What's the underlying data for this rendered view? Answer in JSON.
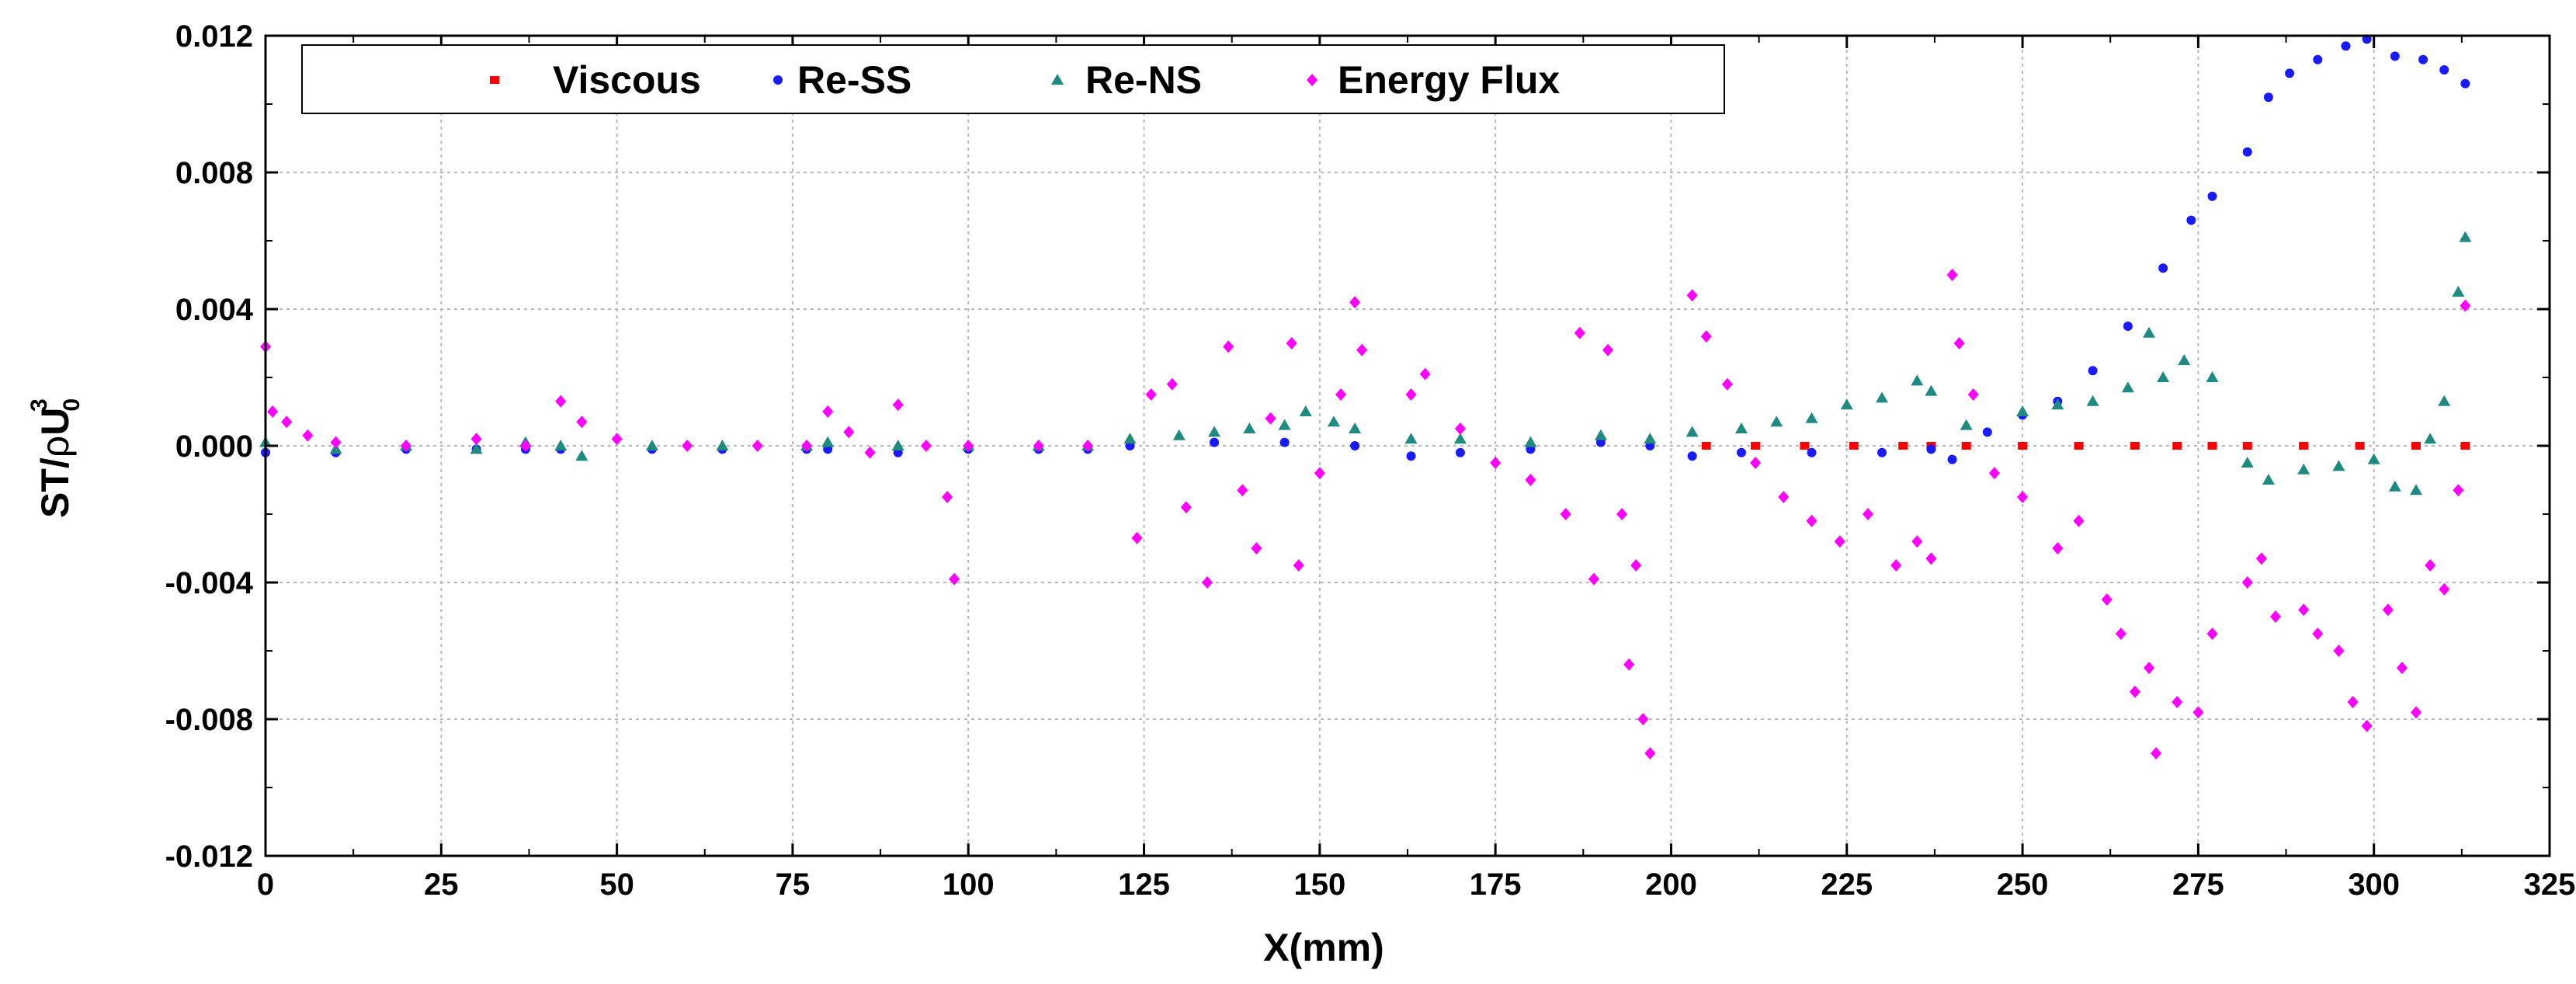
{
  "chart_data": {
    "type": "scatter",
    "title": "",
    "xlabel": "X(mm)",
    "ylabel_parts": {
      "main": "ST/",
      "rho": "ρ",
      "u": "U",
      "sub": "0",
      "sup": "3"
    },
    "xlim": [
      0,
      325
    ],
    "ylim": [
      -0.012,
      0.012
    ],
    "grid": true,
    "legend_position": "top-left",
    "x_ticks": [
      0,
      25,
      50,
      75,
      100,
      125,
      150,
      175,
      200,
      225,
      250,
      275,
      300,
      325
    ],
    "x_tick_labels": [
      "0",
      "25",
      "50",
      "75",
      "100",
      "125",
      "150",
      "175",
      "200",
      "225",
      "250",
      "275",
      "300",
      "325"
    ],
    "y_ticks": [
      -0.012,
      -0.008,
      -0.004,
      0,
      0.004,
      0.008,
      0.012
    ],
    "y_tick_labels": [
      "-0.012",
      "-0.008",
      "-0.004",
      "0.000",
      "0.004",
      "0.008",
      "0.012"
    ],
    "series": [
      {
        "name": "Viscous",
        "color": "#ff0000",
        "marker": "square",
        "points": [
          [
            205,
            0
          ],
          [
            212,
            0
          ],
          [
            219,
            0
          ],
          [
            226,
            0
          ],
          [
            233,
            0
          ],
          [
            237,
            0
          ],
          [
            242,
            0
          ],
          [
            250,
            0
          ],
          [
            258,
            0
          ],
          [
            266,
            0
          ],
          [
            272,
            0
          ],
          [
            277,
            0
          ],
          [
            282,
            0
          ],
          [
            290,
            0
          ],
          [
            298,
            0
          ],
          [
            306,
            0
          ],
          [
            313,
            0
          ]
        ]
      },
      {
        "name": "Re-SS",
        "color": "#1a1aff",
        "marker": "circle",
        "points": [
          [
            0,
            -0.0002
          ],
          [
            10,
            -0.0002
          ],
          [
            20,
            -0.0001
          ],
          [
            30,
            -0.0001
          ],
          [
            37,
            -0.0001
          ],
          [
            42,
            -0.0001
          ],
          [
            55,
            -0.0001
          ],
          [
            65,
            -0.0001
          ],
          [
            77,
            -0.0001
          ],
          [
            80,
            -0.0001
          ],
          [
            90,
            -0.0002
          ],
          [
            100,
            -0.0001
          ],
          [
            110,
            -0.0001
          ],
          [
            117,
            -0.0001
          ],
          [
            123,
            0.0
          ],
          [
            135,
            0.0001
          ],
          [
            145,
            0.0001
          ],
          [
            155,
            0.0
          ],
          [
            163,
            -0.0003
          ],
          [
            170,
            -0.0002
          ],
          [
            180,
            -0.0001
          ],
          [
            190,
            0.0001
          ],
          [
            197,
            0.0
          ],
          [
            203,
            -0.0003
          ],
          [
            210,
            -0.0002
          ],
          [
            220,
            -0.0002
          ],
          [
            230,
            -0.0002
          ],
          [
            237,
            -0.0001
          ],
          [
            240,
            -0.0004
          ],
          [
            245,
            0.0004
          ],
          [
            250,
            0.0009
          ],
          [
            255,
            0.0013
          ],
          [
            260,
            0.0022
          ],
          [
            265,
            0.0035
          ],
          [
            270,
            0.0052
          ],
          [
            274,
            0.0066
          ],
          [
            277,
            0.0073
          ],
          [
            282,
            0.0086
          ],
          [
            285,
            0.0102
          ],
          [
            288,
            0.0109
          ],
          [
            292,
            0.0113
          ],
          [
            296,
            0.0117
          ],
          [
            299,
            0.0119
          ],
          [
            303,
            0.0114
          ],
          [
            307,
            0.0113
          ],
          [
            310,
            0.011
          ],
          [
            313,
            0.0106
          ]
        ]
      },
      {
        "name": "Re-NS",
        "color": "#1f8a80",
        "marker": "triangle",
        "points": [
          [
            0,
            0.0001
          ],
          [
            10,
            -0.0001
          ],
          [
            20,
            0.0
          ],
          [
            30,
            -0.0001
          ],
          [
            37,
            0.0001
          ],
          [
            42,
            0.0
          ],
          [
            45,
            -0.0003
          ],
          [
            55,
            0.0
          ],
          [
            65,
            0.0
          ],
          [
            77,
            0.0
          ],
          [
            80,
            0.0001
          ],
          [
            90,
            0.0
          ],
          [
            100,
            0.0
          ],
          [
            110,
            0.0
          ],
          [
            117,
            0.0
          ],
          [
            123,
            0.0002
          ],
          [
            130,
            0.0003
          ],
          [
            135,
            0.0004
          ],
          [
            140,
            0.0005
          ],
          [
            145,
            0.0006
          ],
          [
            148,
            0.001
          ],
          [
            152,
            0.0007
          ],
          [
            155,
            0.0005
          ],
          [
            163,
            0.0002
          ],
          [
            170,
            0.0002
          ],
          [
            180,
            0.0001
          ],
          [
            190,
            0.0003
          ],
          [
            197,
            0.0002
          ],
          [
            203,
            0.0004
          ],
          [
            210,
            0.0005
          ],
          [
            215,
            0.0007
          ],
          [
            220,
            0.0008
          ],
          [
            225,
            0.0012
          ],
          [
            230,
            0.0014
          ],
          [
            235,
            0.0019
          ],
          [
            237,
            0.0016
          ],
          [
            242,
            0.0006
          ],
          [
            250,
            0.001
          ],
          [
            255,
            0.0012
          ],
          [
            260,
            0.0013
          ],
          [
            265,
            0.0017
          ],
          [
            268,
            0.0033
          ],
          [
            270,
            0.002
          ],
          [
            273,
            0.0025
          ],
          [
            277,
            0.002
          ],
          [
            282,
            -0.0005
          ],
          [
            285,
            -0.001
          ],
          [
            290,
            -0.0007
          ],
          [
            295,
            -0.0006
          ],
          [
            300,
            -0.0004
          ],
          [
            303,
            -0.0012
          ],
          [
            306,
            -0.0013
          ],
          [
            308,
            0.0002
          ],
          [
            310,
            0.0013
          ],
          [
            312,
            0.0045
          ],
          [
            313,
            0.0061
          ]
        ]
      },
      {
        "name": "Energy Flux",
        "color": "#ff00ff",
        "marker": "diamond",
        "points": [
          [
            0,
            0.0029
          ],
          [
            1,
            0.001
          ],
          [
            3,
            0.0007
          ],
          [
            6,
            0.0003
          ],
          [
            10,
            0.0001
          ],
          [
            20,
            0.0
          ],
          [
            30,
            0.0002
          ],
          [
            37,
            0.0
          ],
          [
            42,
            0.0013
          ],
          [
            45,
            0.0007
          ],
          [
            50,
            0.0002
          ],
          [
            60,
            0.0
          ],
          [
            70,
            0.0
          ],
          [
            77,
            0.0
          ],
          [
            80,
            0.001
          ],
          [
            83,
            0.0004
          ],
          [
            86,
            -0.0002
          ],
          [
            90,
            0.0012
          ],
          [
            94,
            0.0
          ],
          [
            97,
            -0.0015
          ],
          [
            98,
            -0.0039
          ],
          [
            100,
            0.0
          ],
          [
            110,
            0.0
          ],
          [
            117,
            0.0
          ],
          [
            124,
            -0.0027
          ],
          [
            126,
            0.0015
          ],
          [
            129,
            0.0018
          ],
          [
            131,
            -0.0018
          ],
          [
            134,
            -0.004
          ],
          [
            137,
            0.0029
          ],
          [
            139,
            -0.0013
          ],
          [
            141,
            -0.003
          ],
          [
            143,
            0.0008
          ],
          [
            146,
            0.003
          ],
          [
            147,
            -0.0035
          ],
          [
            150,
            -0.0008
          ],
          [
            153,
            0.0015
          ],
          [
            155,
            0.0042
          ],
          [
            156,
            0.0028
          ],
          [
            163,
            0.0015
          ],
          [
            165,
            0.0021
          ],
          [
            170,
            0.0005
          ],
          [
            175,
            -0.0005
          ],
          [
            180,
            -0.001
          ],
          [
            185,
            -0.002
          ],
          [
            187,
            0.0033
          ],
          [
            189,
            -0.0039
          ],
          [
            191,
            0.0028
          ],
          [
            193,
            -0.002
          ],
          [
            194,
            -0.0064
          ],
          [
            195,
            -0.0035
          ],
          [
            196,
            -0.008
          ],
          [
            197,
            -0.009
          ],
          [
            203,
            0.0044
          ],
          [
            205,
            0.0032
          ],
          [
            208,
            0.0018
          ],
          [
            212,
            -0.0005
          ],
          [
            216,
            -0.0015
          ],
          [
            220,
            -0.0022
          ],
          [
            224,
            -0.0028
          ],
          [
            228,
            -0.002
          ],
          [
            232,
            -0.0035
          ],
          [
            235,
            -0.0028
          ],
          [
            237,
            -0.0033
          ],
          [
            240,
            0.005
          ],
          [
            241,
            0.003
          ],
          [
            243,
            0.0015
          ],
          [
            246,
            -0.0008
          ],
          [
            250,
            -0.0015
          ],
          [
            255,
            -0.003
          ],
          [
            258,
            -0.0022
          ],
          [
            262,
            -0.0045
          ],
          [
            264,
            -0.0055
          ],
          [
            266,
            -0.0072
          ],
          [
            268,
            -0.0065
          ],
          [
            269,
            -0.009
          ],
          [
            272,
            -0.0075
          ],
          [
            275,
            -0.0078
          ],
          [
            277,
            -0.0055
          ],
          [
            282,
            -0.004
          ],
          [
            284,
            -0.0033
          ],
          [
            286,
            -0.005
          ],
          [
            290,
            -0.0048
          ],
          [
            292,
            -0.0055
          ],
          [
            295,
            -0.006
          ],
          [
            297,
            -0.0075
          ],
          [
            299,
            -0.0082
          ],
          [
            302,
            -0.0048
          ],
          [
            304,
            -0.0065
          ],
          [
            306,
            -0.0078
          ],
          [
            308,
            -0.0035
          ],
          [
            310,
            -0.0042
          ],
          [
            312,
            -0.0013
          ],
          [
            313,
            0.0041
          ]
        ]
      }
    ]
  }
}
